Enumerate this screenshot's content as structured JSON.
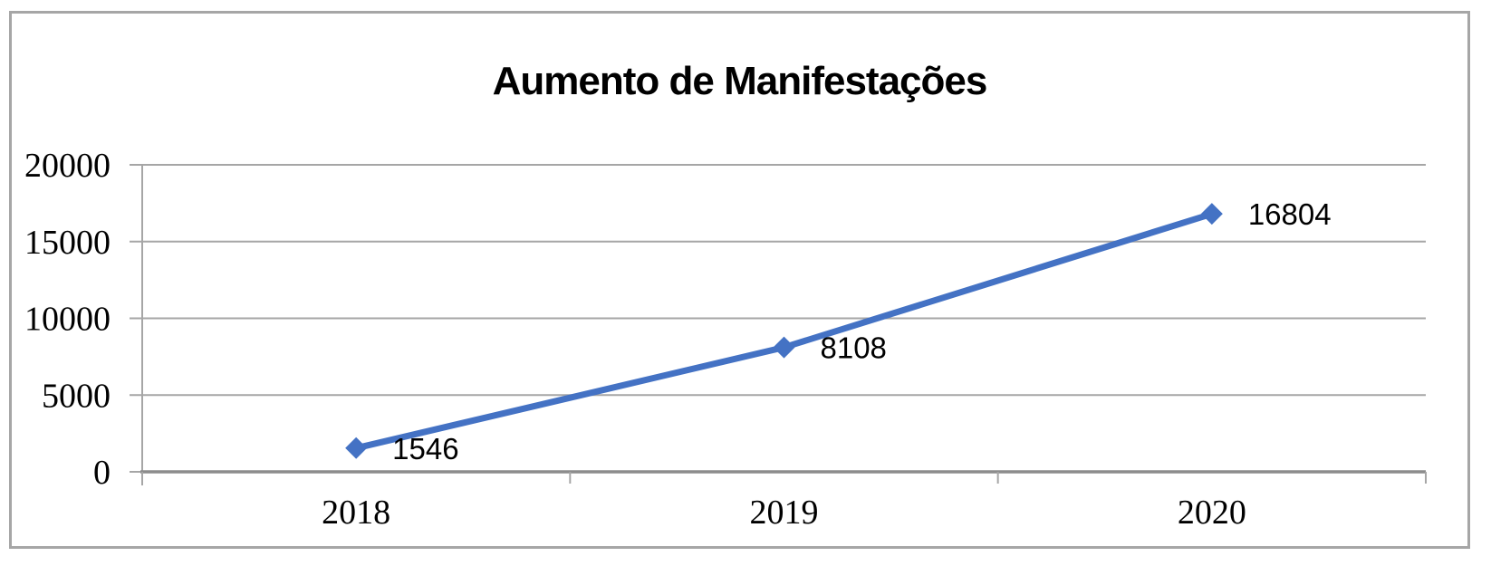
{
  "chart_data": {
    "type": "line",
    "title": "Aumento de Manifestações",
    "categories": [
      "2018",
      "2019",
      "2020"
    ],
    "values": [
      1546,
      8108,
      16804
    ],
    "data_labels": [
      "1546",
      "8108",
      "16804"
    ],
    "ylim": [
      0,
      20000
    ],
    "y_ticks": [
      0,
      5000,
      10000,
      15000,
      20000
    ],
    "y_tick_labels": [
      "0",
      "5000",
      "10000",
      "15000",
      "20000"
    ],
    "grid": true,
    "legend": "none",
    "marker": "diamond",
    "colors": {
      "line": "#4472c4",
      "marker": "#4472c4",
      "gridline": "#a6a6a6",
      "axis": "#a6a6a6",
      "x_axis": "#8c8c8c",
      "frame_border": "#a6a6a6",
      "text": "#000000"
    }
  }
}
